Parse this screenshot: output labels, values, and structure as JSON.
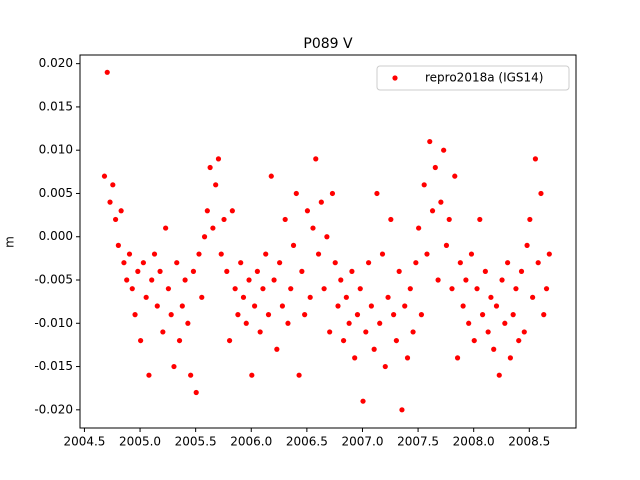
{
  "chart_data": {
    "type": "scatter",
    "title": "P089 V",
    "y_label": "m",
    "xlim": [
      2004.46,
      2008.92
    ],
    "ylim": [
      -0.0221,
      0.021
    ],
    "xticks": [
      2004.5,
      {
        "value": 2005.0,
        "label": "2005.0"
      },
      2005.5,
      {
        "value": 2006.0,
        "label": "2006.0"
      },
      2006.5,
      {
        "value": 2007.0,
        "label": "2007.0"
      },
      2007.5,
      {
        "value": 2008.0,
        "label": "2008.0"
      },
      2008.5
    ],
    "yticks": [
      {
        "value": -0.02,
        "label": "-0.020"
      },
      {
        "value": -0.015,
        "label": "-0.015"
      },
      {
        "value": -0.01,
        "label": "-0.010"
      },
      {
        "value": -0.005,
        "label": "-0.005"
      },
      {
        "value": 0,
        "label": "0.000"
      },
      {
        "value": 0.005,
        "label": "0.005"
      },
      {
        "value": 0.01,
        "label": "0.010"
      },
      {
        "value": 0.015,
        "label": "0.015"
      },
      {
        "value": 0.02,
        "label": "0.020"
      }
    ],
    "legend": "upper right",
    "series": [
      {
        "name": "repro2018a (IGS14)",
        "color": "#ff0000",
        "x": [
          2004.68,
          2004.705,
          2004.73,
          2004.755,
          2004.78,
          2004.805,
          2004.83,
          2004.855,
          2004.88,
          2004.905,
          2004.93,
          2004.955,
          2004.98,
          2005.005,
          2005.03,
          2005.055,
          2005.08,
          2005.105,
          2005.13,
          2005.155,
          2005.18,
          2005.205,
          2005.23,
          2005.255,
          2005.28,
          2005.305,
          2005.33,
          2005.355,
          2005.38,
          2005.405,
          2005.43,
          2005.455,
          2005.48,
          2005.505,
          2005.53,
          2005.555,
          2005.58,
          2005.605,
          2005.63,
          2005.655,
          2005.68,
          2005.705,
          2005.73,
          2005.755,
          2005.78,
          2005.805,
          2005.83,
          2005.855,
          2005.88,
          2005.905,
          2005.93,
          2005.955,
          2005.98,
          2006.005,
          2006.03,
          2006.055,
          2006.08,
          2006.105,
          2006.13,
          2006.155,
          2006.18,
          2006.205,
          2006.23,
          2006.255,
          2006.28,
          2006.305,
          2006.33,
          2006.355,
          2006.38,
          2006.405,
          2006.43,
          2006.455,
          2006.48,
          2006.505,
          2006.53,
          2006.555,
          2006.58,
          2006.605,
          2006.63,
          2006.655,
          2006.68,
          2006.705,
          2006.73,
          2006.755,
          2006.78,
          2006.805,
          2006.83,
          2006.855,
          2006.88,
          2006.905,
          2006.93,
          2006.955,
          2006.98,
          2007.005,
          2007.03,
          2007.055,
          2007.08,
          2007.105,
          2007.13,
          2007.155,
          2007.18,
          2007.205,
          2007.23,
          2007.255,
          2007.28,
          2007.305,
          2007.33,
          2007.355,
          2007.38,
          2007.405,
          2007.43,
          2007.455,
          2007.48,
          2007.505,
          2007.53,
          2007.555,
          2007.58,
          2007.605,
          2007.63,
          2007.655,
          2007.68,
          2007.705,
          2007.73,
          2007.755,
          2007.78,
          2007.805,
          2007.83,
          2007.855,
          2007.88,
          2007.905,
          2007.93,
          2007.955,
          2007.98,
          2008.005,
          2008.03,
          2008.055,
          2008.08,
          2008.105,
          2008.13,
          2008.155,
          2008.18,
          2008.205,
          2008.23,
          2008.255,
          2008.28,
          2008.305,
          2008.33,
          2008.355,
          2008.38,
          2008.405,
          2008.43,
          2008.455,
          2008.48,
          2008.505,
          2008.53,
          2008.555,
          2008.58,
          2008.605,
          2008.63,
          2008.655,
          2008.68
        ],
        "values": [
          0.007,
          0.019,
          0.004,
          0.006,
          0.002,
          -0.001,
          0.003,
          -0.003,
          -0.005,
          -0.002,
          -0.006,
          -0.009,
          -0.004,
          -0.012,
          -0.003,
          -0.007,
          -0.016,
          -0.005,
          -0.002,
          -0.008,
          -0.004,
          -0.011,
          0.001,
          -0.006,
          -0.009,
          -0.015,
          -0.003,
          -0.012,
          -0.008,
          -0.005,
          -0.01,
          -0.016,
          -0.004,
          -0.018,
          -0.002,
          -0.007,
          0.0,
          0.003,
          0.008,
          0.001,
          0.006,
          0.009,
          -0.002,
          0.002,
          -0.004,
          -0.012,
          0.003,
          -0.006,
          -0.009,
          -0.003,
          -0.007,
          -0.01,
          -0.005,
          -0.016,
          -0.008,
          -0.004,
          -0.011,
          -0.006,
          -0.002,
          -0.009,
          0.007,
          -0.005,
          -0.013,
          -0.003,
          -0.008,
          0.002,
          -0.01,
          -0.006,
          -0.001,
          0.005,
          -0.016,
          -0.004,
          -0.009,
          0.003,
          -0.007,
          0.001,
          0.009,
          -0.002,
          0.004,
          -0.006,
          0.0,
          -0.011,
          0.005,
          -0.003,
          -0.008,
          -0.005,
          -0.012,
          -0.007,
          -0.01,
          -0.004,
          -0.014,
          -0.009,
          -0.006,
          -0.019,
          -0.011,
          -0.003,
          -0.008,
          -0.013,
          0.005,
          -0.01,
          -0.002,
          -0.015,
          -0.007,
          0.002,
          -0.009,
          -0.012,
          -0.004,
          -0.02,
          -0.008,
          -0.014,
          -0.006,
          -0.011,
          -0.003,
          0.001,
          -0.009,
          0.006,
          -0.002,
          0.011,
          0.003,
          0.008,
          -0.005,
          0.004,
          0.01,
          -0.001,
          0.002,
          -0.006,
          0.007,
          -0.014,
          -0.003,
          -0.008,
          -0.005,
          -0.01,
          -0.002,
          -0.012,
          -0.006,
          0.002,
          -0.009,
          -0.004,
          -0.011,
          -0.007,
          -0.013,
          -0.008,
          -0.016,
          -0.005,
          -0.01,
          -0.003,
          -0.014,
          -0.009,
          -0.006,
          -0.012,
          -0.004,
          -0.011,
          -0.001,
          0.002,
          -0.007,
          0.009,
          -0.003,
          0.005,
          -0.009,
          -0.006,
          -0.002
        ]
      }
    ]
  }
}
